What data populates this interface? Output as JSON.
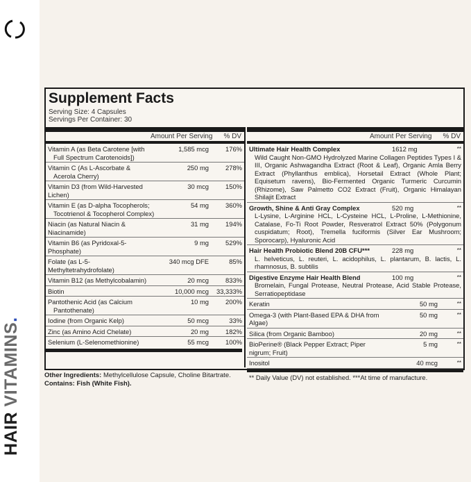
{
  "brand": {
    "word1": "HAIR",
    "word2": "VITAMINS",
    "dot": ".",
    "colors": {
      "dark": "#1e1e1e",
      "gray": "#6a6a6a",
      "dot": "#2e4fb8"
    },
    "logo_icon": "broken-circle-icon"
  },
  "facts": {
    "title": "Supplement Facts",
    "serving_size": "Serving Size: 4 Capsules",
    "servings_per_container": "Servings Per Container: 30",
    "header": {
      "amount": "Amount Per Serving",
      "dv": "% DV"
    },
    "left_rows": [
      {
        "name": "Vitamin A (as Beta Carotene [with",
        "name2": "Full Spectrum Carotenoids])",
        "amount": "1,585 mcg",
        "dv": "176%"
      },
      {
        "name": "Vitamin C (As L-Ascorbate &",
        "name2": "Acerola Cherry)",
        "amount": "250 mg",
        "dv": "278%"
      },
      {
        "name": "Vitamin D3 (from Wild-Harvested Lichen)",
        "amount": "30 mcg",
        "dv": "150%"
      },
      {
        "name": "Vitamin E (as D-alpha Tocopherols;",
        "name2": "Tocotrienol & Tocopherol Complex)",
        "amount": "54 mg",
        "dv": "360%"
      },
      {
        "name": "Niacin (as Natural Niacin & Niacinamide)",
        "amount": "31 mg",
        "dv": "194%"
      },
      {
        "name": "Vitamin B6 (as Pyridoxal-5-Phosphate)",
        "amount": "9 mg",
        "dv": "529%"
      },
      {
        "name": "Folate (as L-5-Methyltetrahydrofolate)",
        "amount": "340 mcg DFE",
        "dv": "85%"
      },
      {
        "name": "Vitamin B12 (as Methylcobalamin)",
        "amount": "20 mcg",
        "dv": "833%"
      },
      {
        "name": "Biotin",
        "amount": "10,000 mcg",
        "dv": "33,333%"
      },
      {
        "name": "Pantothenic Acid (as Calcium",
        "name2": "Pantothenate)",
        "amount": "10 mg",
        "dv": "200%"
      },
      {
        "name": "Iodine (from Organic Kelp)",
        "amount": "50 mcg",
        "dv": "33%"
      },
      {
        "name": "Zinc (as Amino Acid Chelate)",
        "amount": "20 mg",
        "dv": "182%"
      },
      {
        "name": "Selenium (L-Selenomethionine)",
        "amount": "55 mcg",
        "dv": "100%"
      }
    ],
    "right_blends": [
      {
        "name": "Ultimate Hair Health Complex",
        "amount": "1612 mg",
        "dv": "**",
        "desc": "Wild Caught Non-GMO Hydrolyzed Marine Collagen Peptides Types I & III, Organic Ashwagandha Extract (Root & Leaf), Organic Amla Berry Extract (Phyllanthus emblica), Horsetail Extract (Whole Plant; Equisetum ravens), Bio-Fermented Organic Turmeric Curcumin (Rhizome), Saw Palmetto CO2 Extract (Fruit), Organic Himalayan Shilajit Extract"
      },
      {
        "name": "Growth, Shine & Anti Gray Complex",
        "amount": "520 mg",
        "dv": "**",
        "desc": "L-Lysine, L-Arginine HCL, L-Cysteine HCL, L-Proline, L-Methionine, Catalase, Fo-Ti Root Powder, Resveratrol Extract 50% (Polygonum cuspidatum; Root), Tremella fuciformis (Silver Ear Mushroom; Sporocarp), Hyaluronic Acid"
      },
      {
        "name": "Hair Health Probiotic Blend 20B CFU***",
        "amount": "228 mg",
        "dv": "**",
        "desc": "L. helveticus, L. reuteri, L. acidophilus, L. plantarum, B. lactis, L. rhamnosus, B. subtilis"
      },
      {
        "name": "Digestive Enzyme Hair Health Blend",
        "amount": "100 mg",
        "dv": "**",
        "desc": "Bromelain, Fungal Protease, Neutral Protease, Acid Stable Protease, Serratiopeptidase"
      }
    ],
    "right_rows": [
      {
        "name": "Keratin",
        "amount": "50 mg",
        "dv": "**"
      },
      {
        "name": "Omega-3 (with Plant-Based EPA & DHA from Algae)",
        "amount": "50 mg",
        "dv": "**"
      },
      {
        "name": "Silica (from Organic Bamboo)",
        "amount": "20 mg",
        "dv": "**"
      },
      {
        "name": "BioPerine® (Black Pepper Extract; Piper nigrum; Fruit)",
        "amount": "5 mg",
        "dv": "**"
      },
      {
        "name": "Inositol",
        "amount": "40 mcg",
        "dv": "**"
      }
    ],
    "footnote": "** Daily Value (DV) not established.   ***At time of manufacture."
  },
  "other": {
    "label": "Other Ingredients:",
    "text": " Methylcellulose Capsule, Choline Bitartrate.",
    "contains": "Contains: Fish (White Fish)."
  }
}
